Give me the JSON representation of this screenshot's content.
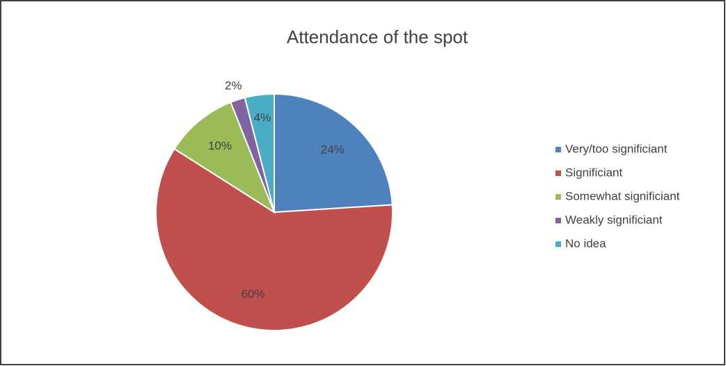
{
  "chart_data": {
    "type": "pie",
    "title": "Attendance of the spot",
    "categories": [
      "Very/too significiant",
      "Significiant",
      "Somewhat significiant",
      "Weakly significiant",
      "No idea"
    ],
    "values": [
      24,
      60,
      10,
      2,
      4
    ],
    "value_labels": [
      "24%",
      "60%",
      "10%",
      "2%",
      "4%"
    ],
    "colors": [
      "#4f81bd",
      "#c0504d",
      "#9bbb59",
      "#8064a2",
      "#4bacc6"
    ],
    "legend": "right"
  }
}
